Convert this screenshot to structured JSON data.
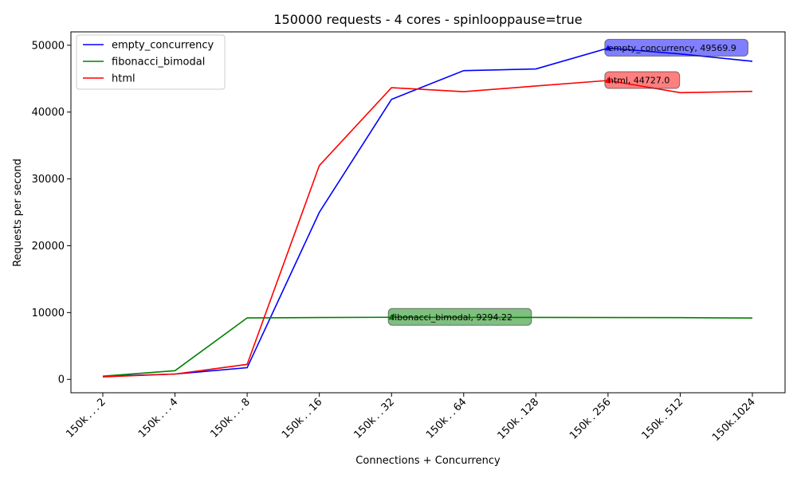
{
  "chart_data": {
    "type": "line",
    "title": "150000 requests - 4 cores - spinlooppause=true",
    "xlabel": "Connections + Concurrency",
    "ylabel": "Requests per second",
    "categories": [
      "150k . . . 2",
      "150k . . . 4",
      "150k . . . 8",
      "150k . . 16",
      "150k . . 32",
      "150k . . 64",
      "150k . 128",
      "150k . 256",
      "150k . 512",
      "150k.1024"
    ],
    "ylim": [
      -2000,
      52000
    ],
    "yticks": [
      0,
      10000,
      20000,
      30000,
      40000,
      50000
    ],
    "legend_position": "upper-left",
    "grid": false,
    "series": [
      {
        "name": "empty_concurrency",
        "color": "#0000ff",
        "values": [
          450,
          800,
          1750,
          25000,
          41900,
          46200,
          46450,
          49569.9,
          48700,
          47600
        ]
      },
      {
        "name": "fibonacci_bimodal",
        "color": "#008000",
        "values": [
          480,
          1300,
          9200,
          9260,
          9294.22,
          9280,
          9270,
          9260,
          9240,
          9180
        ]
      },
      {
        "name": "html",
        "color": "#ff0000",
        "values": [
          380,
          800,
          2250,
          32000,
          43650,
          43050,
          43900,
          44727.0,
          42900,
          43100
        ]
      }
    ],
    "annotations": [
      {
        "series": 0,
        "index": 7,
        "text": "empty_concurrency, 49569.9",
        "color": "#0000ff"
      },
      {
        "series": 2,
        "index": 7,
        "text": "html, 44727.0",
        "color": "#ff0000"
      },
      {
        "series": 1,
        "index": 4,
        "text": "fibonacci_bimodal, 9294.22",
        "color": "#008000"
      }
    ]
  }
}
